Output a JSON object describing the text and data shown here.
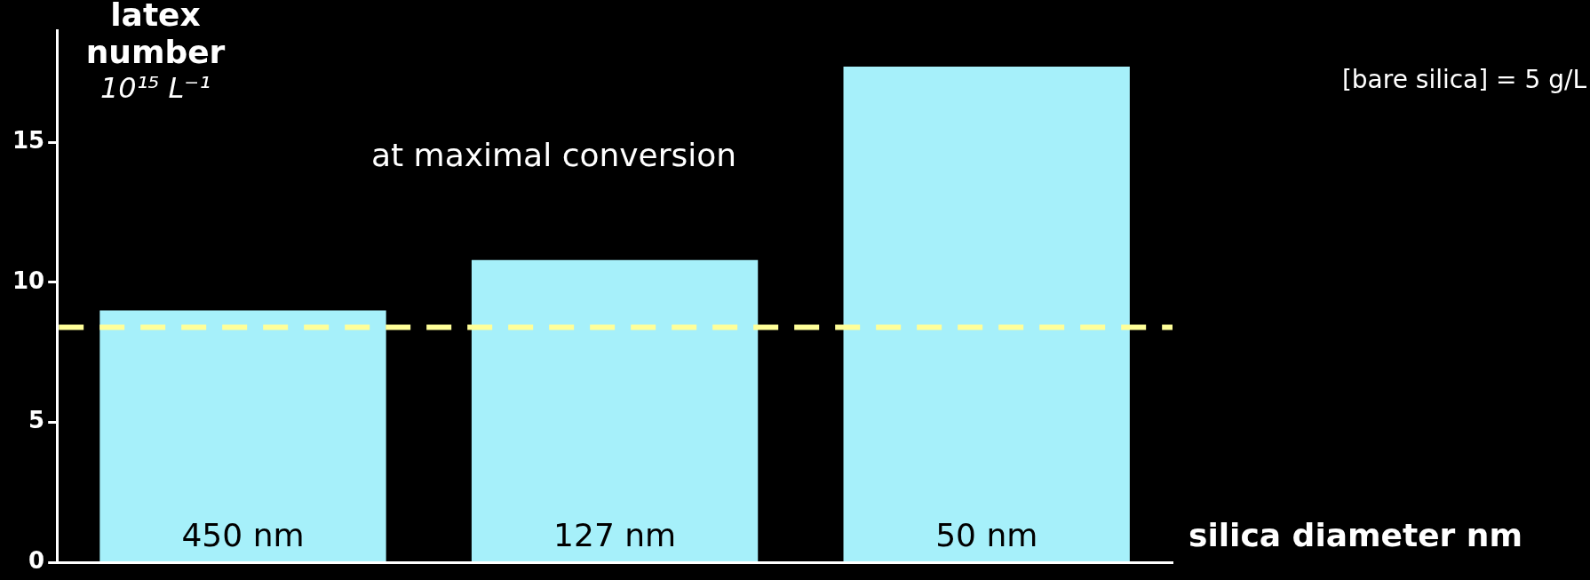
{
  "chart_data": {
    "type": "bar",
    "categories": [
      "450 nm",
      "127 nm",
      "50 nm"
    ],
    "series": [
      {
        "color": "#a6f0fa",
        "values": [
          9.0,
          10.8,
          17.7
        ]
      }
    ],
    "ylabel": "latex\nnumber\n10¹⁵ L⁻¹",
    "xlabel": "silica diameter nm",
    "annotations": [
      "at maximal conversion",
      "[bare silica] = 5 g/L"
    ],
    "ref_lines": [
      {
        "axis": "y",
        "value": 8.4,
        "color": "#ffff99",
        "line_style": "dashed"
      }
    ],
    "ylim": [
      0,
      19
    ],
    "yticks": [
      0,
      5,
      10,
      15
    ],
    "grid": false,
    "legend": false
  }
}
